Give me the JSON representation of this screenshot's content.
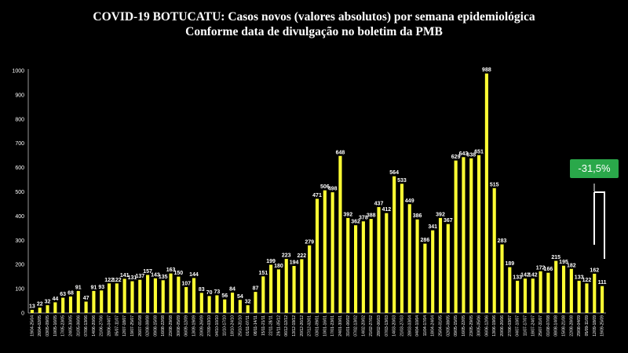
{
  "title_line1": "COVID-19 BOTUCATU: Casos novos (valores absolutos) por semana epidemiológica",
  "title_line2": "Conforme data de divulgação no boletim da PMB",
  "change_label": "-31,5%",
  "colors": {
    "bar": "#ffff33",
    "background": "#000000",
    "badge": "#2aa84a",
    "grid": "#444444"
  },
  "chart_data": {
    "type": "bar",
    "ylim": [
      0,
      1000
    ],
    "yticks": [
      0,
      100,
      200,
      300,
      400,
      500,
      600,
      700,
      800,
      900,
      1000
    ],
    "grid": false,
    "categories": [
      "19/04-25/04",
      "26/04-02/05",
      "03/05-09/05",
      "10/05-16/05",
      "17/05-23/05",
      "24/05-30/05",
      "31/05-06/06",
      "07/06-13/06",
      "14/06-20/06",
      "21/06-27/06",
      "28/06-04/07",
      "05/07-11/07",
      "12/07-18/07",
      "19/07-25/07",
      "26/07-01/08",
      "02/08-08/08",
      "09/08-15/08",
      "16/08-22/08",
      "23/08-29/08",
      "30/08-05/09",
      "06/09-12/09",
      "13/09-19/09",
      "20/09-26/09",
      "27/09-03/10",
      "04/10-10/10",
      "11/10-17/10",
      "18/10-24/10",
      "25/10-31/10",
      "01/11-07/11",
      "08/11-14/11",
      "15/11-21/11",
      "22/11-28/11",
      "29/11-05/12",
      "06/12-12/12",
      "13/12-19/12",
      "20/12-26/12",
      "27/12-02/01",
      "03/01-09/01",
      "10/01-16/01",
      "17/01-23/01",
      "24/01-30/01",
      "31/01-06/02",
      "07/02-13/02",
      "14/02-20/02",
      "21/02-27/02",
      "28/02-06/03",
      "07/03-13/03",
      "14/03-20/03",
      "21/03-27/03",
      "28/03-03/04",
      "04/04-10/04",
      "11/04-17/04",
      "18/04-24/04",
      "25/04-01/05",
      "02/05-08/05",
      "09/05-15/05",
      "16/05-22/05",
      "23/05-29/05",
      "30/05-05/06",
      "06/06-12/06",
      "13/06-19/06",
      "20/06-26/06",
      "27/06-03/07",
      "04/07-10/07",
      "11/07-17/07",
      "18/07-24/07",
      "25/07-31/07",
      "01/08-07/08",
      "08/08-14/08",
      "15/08-21/08",
      "22/08-28/08",
      "29/08-04/09",
      "05/09-11/09",
      "12/09-18/09",
      "19/09-25/09"
    ],
    "values": [
      13,
      22,
      32,
      44,
      63,
      68,
      91,
      47,
      91,
      93,
      122,
      122,
      141,
      131,
      137,
      157,
      143,
      135,
      163,
      150,
      107,
      144,
      83,
      70,
      73,
      56,
      84,
      54,
      32,
      87,
      151,
      199,
      180,
      223,
      194,
      222,
      279,
      471,
      506,
      498,
      648,
      392,
      362,
      378,
      388,
      437,
      412,
      564,
      533,
      449,
      386,
      286,
      341,
      392,
      367,
      629,
      643,
      638,
      651,
      988,
      515,
      283,
      189,
      133,
      142,
      142,
      172,
      166,
      215,
      195,
      182,
      133,
      122,
      162,
      111
    ]
  }
}
